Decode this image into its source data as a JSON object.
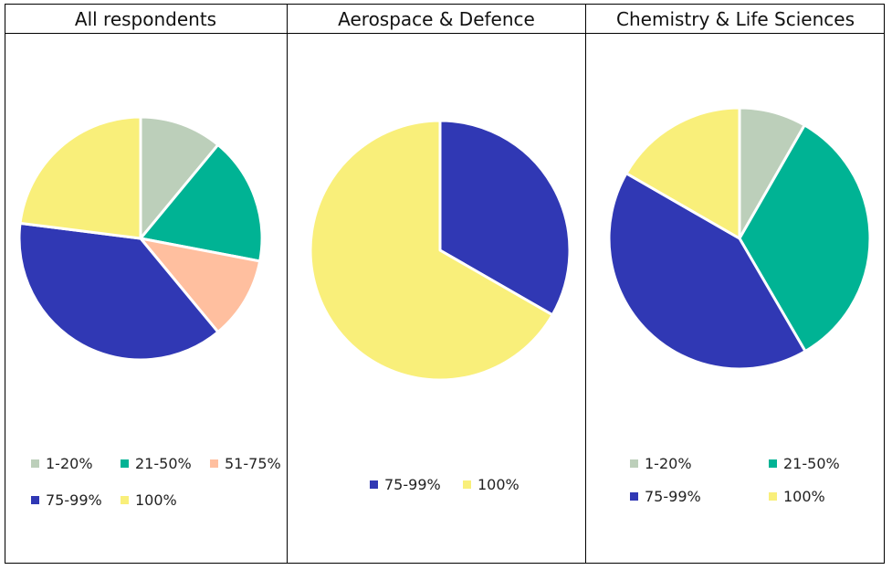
{
  "colors": {
    "c1_20": "#bccfba",
    "c21_50": "#00b394",
    "c51_75": "#ffbf9f",
    "c75_99": "#3038b4",
    "c100": "#f9ef7a"
  },
  "chart_data": [
    {
      "type": "pie",
      "title": "All respondents",
      "categories": [
        "1-20%",
        "21-50%",
        "51-75%",
        "75-99%",
        "100%"
      ],
      "values": [
        11,
        17,
        11,
        38,
        23
      ],
      "legend": "bottom"
    },
    {
      "type": "pie",
      "title": "Aerospace & Defence",
      "categories": [
        "75-99%",
        "100%"
      ],
      "values": [
        33.3,
        66.7
      ],
      "legend": "bottom"
    },
    {
      "type": "pie",
      "title": "Chemistry & Life Sciences",
      "categories": [
        "1-20%",
        "21-50%",
        "75-99%",
        "100%"
      ],
      "values": [
        8.3,
        33.3,
        41.7,
        16.7
      ],
      "legend": "bottom"
    }
  ]
}
